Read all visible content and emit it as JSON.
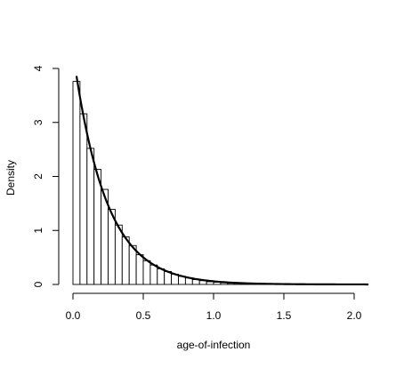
{
  "chart_data": {
    "type": "histogram",
    "title": "",
    "xlabel": "age-of-infection",
    "ylabel": "Density",
    "xlim": [
      0.0,
      2.1
    ],
    "ylim": [
      0,
      4.2
    ],
    "x_ticks": [
      0.0,
      0.5,
      1.0,
      1.5,
      2.0
    ],
    "x_tick_labels": [
      "0.0",
      "0.5",
      "1.0",
      "1.5",
      "2.0"
    ],
    "y_ticks": [
      0,
      1,
      2,
      3,
      4
    ],
    "y_tick_labels": [
      "0",
      "1",
      "2",
      "3",
      "4"
    ],
    "bin_width": 0.05,
    "bin_start": 0.0,
    "densities": [
      3.76,
      3.16,
      2.52,
      2.13,
      1.76,
      1.39,
      1.1,
      0.88,
      0.72,
      0.55,
      0.44,
      0.36,
      0.29,
      0.24,
      0.19,
      0.15,
      0.12,
      0.09,
      0.07,
      0.05,
      0.04,
      0.03,
      0.02,
      0.02,
      0.01,
      0.01,
      0.01,
      0.005,
      0.004,
      0.003,
      0.002,
      0.002,
      0.001,
      0.001,
      0.001,
      0.0005,
      0.0005,
      0.0004,
      0.0003,
      0.0002,
      0.0002,
      0.0001
    ],
    "overlay_curve": {
      "type": "exponential_density",
      "rate": 4.3,
      "x_range": [
        0.025,
        2.1
      ],
      "color": "#000000"
    },
    "grid": false,
    "legend": "none"
  }
}
